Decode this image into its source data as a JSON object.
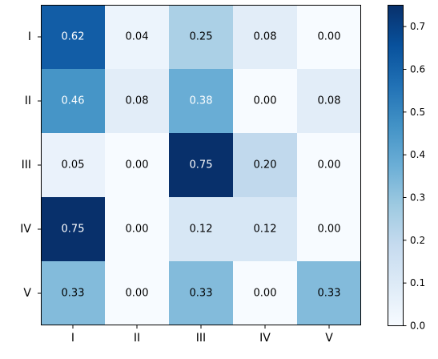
{
  "chart_data": {
    "type": "heatmap",
    "colormap": "Blues",
    "row_labels": [
      "I",
      "II",
      "III",
      "IV",
      "V"
    ],
    "col_labels": [
      "I",
      "II",
      "III",
      "IV",
      "V"
    ],
    "values": [
      [
        0.62,
        0.04,
        0.25,
        0.08,
        0.0
      ],
      [
        0.46,
        0.08,
        0.38,
        0.0,
        0.08
      ],
      [
        0.05,
        0.0,
        0.75,
        0.2,
        0.0
      ],
      [
        0.75,
        0.0,
        0.12,
        0.12,
        0.0
      ],
      [
        0.33,
        0.0,
        0.33,
        0.0,
        0.33
      ]
    ],
    "cell_labels": [
      [
        "0.62",
        "0.04",
        "0.25",
        "0.08",
        "0.00"
      ],
      [
        "0.46",
        "0.08",
        "0.38",
        "0.00",
        "0.08"
      ],
      [
        "0.05",
        "0.00",
        "0.75",
        "0.20",
        "0.00"
      ],
      [
        "0.75",
        "0.00",
        "0.12",
        "0.12",
        "0.00"
      ],
      [
        "0.33",
        "0.00",
        "0.33",
        "0.00",
        "0.33"
      ]
    ],
    "colorbar": {
      "min": 0.0,
      "max": 0.75,
      "ticks": [
        0.0,
        0.1,
        0.2,
        0.3,
        0.4,
        0.5,
        0.6,
        0.7
      ],
      "tick_labels": [
        "0.0",
        "0.1",
        "0.2",
        "0.3",
        "0.4",
        "0.5",
        "0.6",
        "0.7"
      ]
    },
    "title": "",
    "xlabel": "",
    "ylabel": ""
  }
}
